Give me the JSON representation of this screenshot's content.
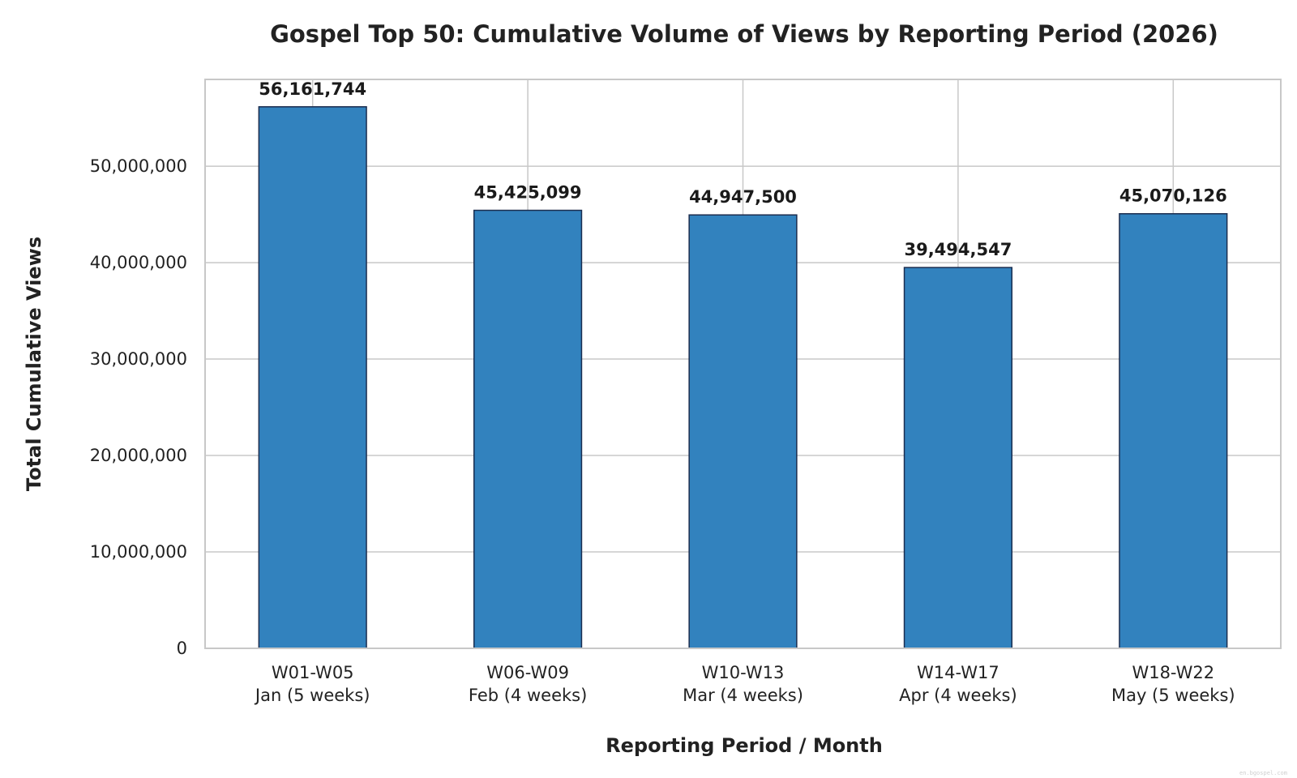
{
  "chart_data": {
    "type": "bar",
    "title": "Gospel Top 50: Cumulative Volume of Views by Reporting Period (2026)",
    "xlabel": "Reporting Period / Month",
    "ylabel": "Total Cumulative Views",
    "categories": [
      [
        "W01-W05",
        "Jan (5 weeks)"
      ],
      [
        "W06-W09",
        "Feb (4 weeks)"
      ],
      [
        "W10-W13",
        "Mar (4 weeks)"
      ],
      [
        "W14-W17",
        "Apr (4 weeks)"
      ],
      [
        "W18-W22",
        "May (5 weeks)"
      ]
    ],
    "values": [
      56161744,
      45425099,
      44947500,
      39494547,
      45070126
    ],
    "data_labels": [
      "56,161,744",
      "45,425,099",
      "44,947,500",
      "39,494,547",
      "45,070,126"
    ],
    "yticks": [
      0,
      10000000,
      20000000,
      30000000,
      40000000,
      50000000
    ],
    "ytick_labels": [
      "0",
      "10,000,000",
      "20,000,000",
      "30,000,000",
      "40,000,000",
      "50,000,000"
    ],
    "ylim": [
      0,
      59000000
    ],
    "grid": true,
    "bar_color": "#3282be",
    "bar_edge_color": "#1b2d4f",
    "watermark": "en.bgospel.com"
  }
}
